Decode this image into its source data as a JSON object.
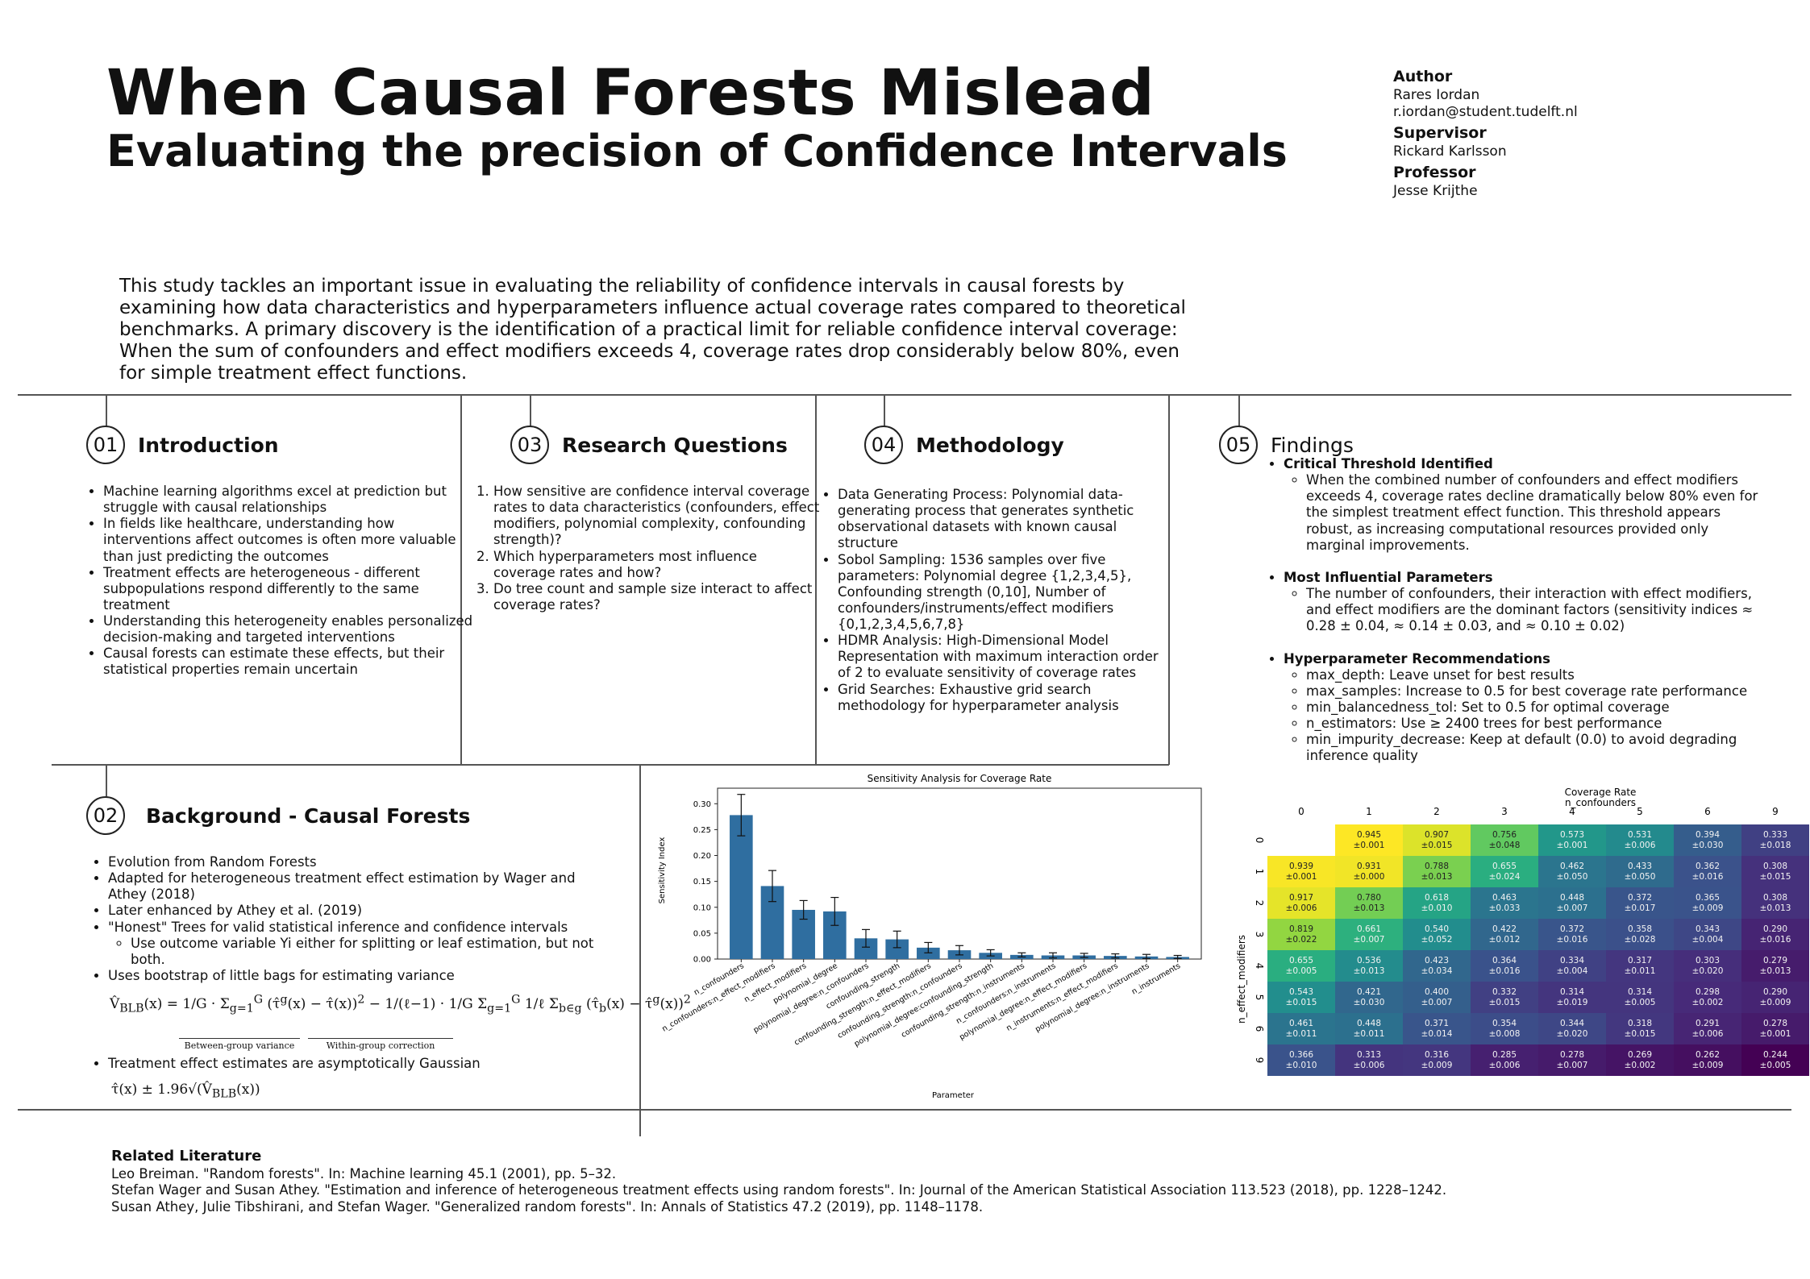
{
  "header": {
    "title": "When Causal Forests Mislead",
    "subtitle": "Evaluating the precision of Confidence Intervals"
  },
  "people": {
    "author_heading": "Author",
    "author_name": "Rares Iordan",
    "author_email": "r.iordan@student.tudelft.nl",
    "supervisor_heading": "Supervisor",
    "supervisor_name": "Rickard Karlsson",
    "professor_heading": "Professor",
    "professor_name": "Jesse Krijthe"
  },
  "abstract": "This study tackles an important issue in evaluating the reliability of confidence intervals in causal forests by examining how data characteristics and hyperparameters influence actual coverage rates compared to theoretical benchmarks. A primary discovery is the identification of a practical limit for reliable confidence interval coverage: When the sum of confounders and effect modifiers exceeds 4, coverage rates drop considerably below 80%, even for simple treatment effect functions.",
  "intro": {
    "num": "01",
    "title": "Introduction",
    "bullets": [
      "Machine learning algorithms excel at prediction but struggle with causal relationships",
      "In fields like healthcare, understanding how interventions affect outcomes is often more valuable than just predicting the outcomes",
      "Treatment effects are heterogeneous - different subpopulations respond differently to the same treatment",
      "Understanding this heterogeneity enables personalized decision-making and targeted interventions",
      "Causal forests can estimate these effects, but their statistical properties remain uncertain"
    ]
  },
  "research": {
    "num": "03",
    "title": "Research Questions",
    "items": [
      "How sensitive are confidence interval coverage rates to data characteristics (confounders, effect modifiers, polynomial complexity, confounding strength)?",
      "Which hyperparameters most influence coverage rates and how?",
      "Do tree count and sample size interact to affect coverage rates?"
    ]
  },
  "method": {
    "num": "04",
    "title": "Methodology",
    "bullets": [
      "Data Generating Process: Polynomial data-generating process that generates synthetic observational datasets with known causal structure",
      "Sobol Sampling: 1536 samples over five parameters: Polynomial degree {1,2,3,4,5}, Confounding strength (0,10], Number of confounders/instruments/effect modifiers {0,1,2,3,4,5,6,7,8}",
      "HDMR Analysis: High-Dimensional Model Representation with maximum interaction order of 2 to evaluate sensitivity of coverage rates",
      "Grid Searches: Exhaustive grid search methodology for hyperparameter analysis"
    ]
  },
  "findings": {
    "num": "05",
    "title": "Findings",
    "h1": "Critical Threshold Identified",
    "t1": "When the combined number of confounders and effect modifiers exceeds 4, coverage rates decline dramatically below 80% even for the simplest treatment effect function. This threshold appears robust, as increasing computational resources provided only marginal improvements.",
    "h2": "Most Influential Parameters",
    "t2": "The number of confounders, their interaction with effect modifiers, and effect modifiers are the dominant factors (sensitivity indices ≈ 0.28 ± 0.04, ≈ 0.14 ± 0.03, and ≈ 0.10 ± 0.02)",
    "h3": "Hyperparameter Recommendations",
    "recs": [
      "max_depth: Leave unset for best results",
      "max_samples: Increase to 0.5 for best coverage rate performance",
      "min_balancedness_tol: Set to 0.5 for optimal coverage",
      "n_estimators: Use ≥ 2400 trees for best performance",
      "min_impurity_decrease: Keep at default (0.0) to avoid degrading inference quality"
    ]
  },
  "background": {
    "num": "02",
    "title": "Background - Causal Forests",
    "bullets": [
      "Evolution from Random Forests",
      "Adapted for heterogeneous treatment effect estimation by Wager and Athey (2018)",
      "Later enhanced by Athey et al. (2019)",
      "\"Honest\" Trees for valid statistical inference and confidence intervals"
    ],
    "sub": "Use outcome variable Yi either for splitting or leaf estimation, but not both.",
    "bootstrap": "Uses bootstrap of little bags for estimating variance",
    "between_label": "Between-group variance",
    "within_label": "Within-group correction",
    "gaussian": "Treatment effect estimates are asymptotically Gaussian"
  },
  "literature": {
    "heading": "Related Literature",
    "refs": [
      "Leo Breiman. \"Random forests\". In: Machine learning 45.1 (2001), pp. 5–32.",
      "Stefan Wager and Susan Athey. \"Estimation and inference of heterogeneous treatment effects using random forests\". In: Journal of the American Statistical Association 113.523 (2018), pp. 1228–1242.",
      "Susan Athey, Julie Tibshirani, and Stefan Wager. \"Generalized random forests\". In: Annals of Statistics 47.2 (2019), pp. 1148–1178."
    ]
  },
  "chart_data": [
    {
      "type": "bar",
      "title": "Sensitivity Analysis for Coverage Rate",
      "xlabel": "Parameter",
      "ylabel": "Sensitivity Index",
      "ylim": [
        0,
        0.33
      ],
      "yticks": [
        "0.00",
        "0.05",
        "0.10",
        "0.15",
        "0.20",
        "0.25",
        "0.30"
      ],
      "categories": [
        "n_confounders",
        "n_confounders:n_effect_modifiers",
        "n_effect_modifiers",
        "polynomial_degree",
        "polynomial_degree:n_confounders",
        "confounding_strength",
        "confounding_strength:n_effect_modifiers",
        "confounding_strength:n_confounders",
        "polynomial_degree:confounding_strength",
        "confounding_strength:n_instruments",
        "n_confounders:n_instruments",
        "polynomial_degree:n_effect_modifiers",
        "n_instruments:n_effect_modifiers",
        "polynomial_degree:n_instruments",
        "n_instruments"
      ],
      "values": [
        0.278,
        0.141,
        0.095,
        0.092,
        0.04,
        0.038,
        0.022,
        0.017,
        0.012,
        0.008,
        0.007,
        0.007,
        0.006,
        0.005,
        0.004
      ],
      "errors": [
        0.04,
        0.03,
        0.018,
        0.027,
        0.017,
        0.016,
        0.01,
        0.009,
        0.006,
        0.004,
        0.005,
        0.004,
        0.004,
        0.004,
        0.003
      ],
      "color": "#2f6ea0"
    },
    {
      "type": "heatmap",
      "title": "Coverage Rate",
      "xlabel": "n_confounders",
      "ylabel": "n_effect_modifiers",
      "x": [
        "0",
        "1",
        "2",
        "3",
        "4",
        "5",
        "6",
        "9"
      ],
      "y": [
        "0",
        "1",
        "2",
        "3",
        "4",
        "5",
        "6",
        "9"
      ],
      "values": [
        [
          null,
          0.945,
          0.907,
          0.756,
          0.573,
          0.531,
          0.394,
          0.333
        ],
        [
          0.939,
          0.931,
          0.788,
          0.655,
          0.462,
          0.433,
          0.362,
          0.308
        ],
        [
          0.917,
          0.78,
          0.618,
          0.463,
          0.448,
          0.372,
          0.365,
          0.308
        ],
        [
          0.819,
          0.661,
          0.54,
          0.422,
          0.372,
          0.358,
          0.343,
          0.29
        ],
        [
          0.655,
          0.536,
          0.423,
          0.364,
          0.334,
          0.317,
          0.303,
          0.279
        ],
        [
          0.543,
          0.421,
          0.4,
          0.332,
          0.314,
          0.314,
          0.298,
          0.29
        ],
        [
          0.461,
          0.448,
          0.371,
          0.354,
          0.344,
          0.318,
          0.291,
          0.278
        ],
        [
          0.366,
          0.313,
          0.316,
          0.285,
          0.278,
          0.269,
          0.262,
          0.244
        ]
      ],
      "labels": [
        [
          "",
          "0.945\n±0.001",
          "0.907\n±0.015",
          "0.756\n±0.048",
          "0.573\n±0.001",
          "0.531\n±0.006",
          "0.394\n±0.030",
          "0.333\n±0.018"
        ],
        [
          "0.939\n±0.001",
          "0.931\n±0.000",
          "0.788\n±0.013",
          "0.655\n±0.024",
          "0.462\n±0.050",
          "0.433\n±0.050",
          "0.362\n±0.016",
          "0.308\n±0.015"
        ],
        [
          "0.917\n±0.006",
          "0.780\n±0.013",
          "0.618\n±0.010",
          "0.463\n±0.033",
          "0.448\n±0.007",
          "0.372\n±0.017",
          "0.365\n±0.009",
          "0.308\n±0.013"
        ],
        [
          "0.819\n±0.022",
          "0.661\n±0.007",
          "0.540\n±0.052",
          "0.422\n±0.012",
          "0.372\n±0.016",
          "0.358\n±0.028",
          "0.343\n±0.004",
          "0.290\n±0.016"
        ],
        [
          "0.655\n±0.005",
          "0.536\n±0.013",
          "0.423\n±0.034",
          "0.364\n±0.016",
          "0.334\n±0.004",
          "0.317\n±0.011",
          "0.303\n±0.020",
          "0.279\n±0.013"
        ],
        [
          "0.543\n±0.015",
          "0.421\n±0.030",
          "0.400\n±0.007",
          "0.332\n±0.015",
          "0.314\n±0.019",
          "0.314\n±0.005",
          "0.298\n±0.002",
          "0.290\n±0.009"
        ],
        [
          "0.461\n±0.011",
          "0.448\n±0.011",
          "0.371\n±0.014",
          "0.354\n±0.008",
          "0.344\n±0.020",
          "0.318\n±0.015",
          "0.291\n±0.006",
          "0.278\n±0.001"
        ],
        [
          "0.366\n±0.010",
          "0.313\n±0.006",
          "0.316\n±0.009",
          "0.285\n±0.006",
          "0.278\n±0.007",
          "0.269\n±0.002",
          "0.262\n±0.009",
          "0.244\n±0.005"
        ]
      ]
    }
  ]
}
